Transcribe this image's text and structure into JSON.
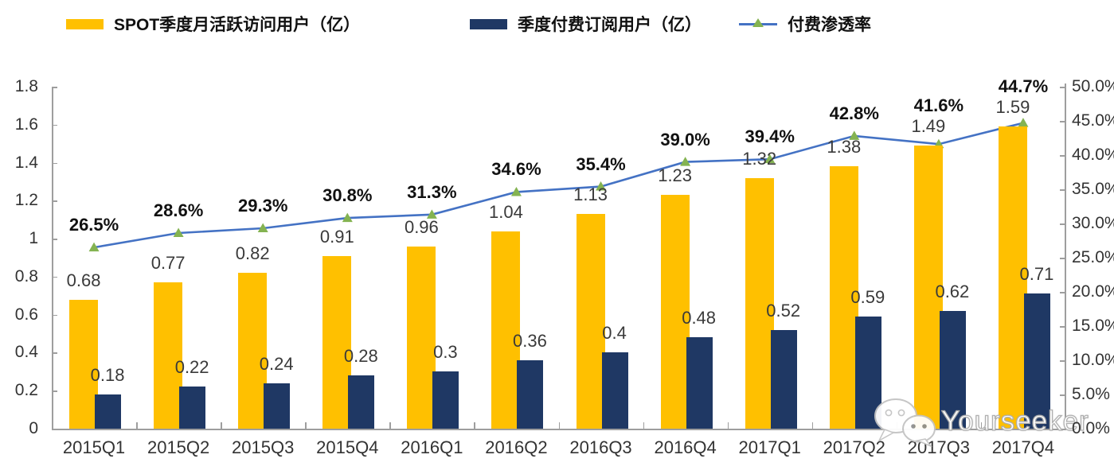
{
  "page": {
    "background": "#ffffff"
  },
  "legend": {
    "position": "top",
    "items": [
      {
        "id": "mau",
        "label": "SPOT季度月活跃访问用户（亿）",
        "swatch": "bar",
        "color": "#FFC000"
      },
      {
        "id": "subs",
        "label": "季度付费订阅用户（亿）",
        "swatch": "bar",
        "color": "#1F3864"
      },
      {
        "id": "penetration",
        "label": "付费渗透率",
        "swatch": "line",
        "color": "#4472C4",
        "marker_color": "#84B351"
      }
    ]
  },
  "chart_data": {
    "type": "combo-bar-line",
    "grid": false,
    "legend_position": "top",
    "categories": [
      "2015Q1",
      "2015Q2",
      "2015Q3",
      "2015Q4",
      "2016Q1",
      "2016Q2",
      "2016Q3",
      "2016Q4",
      "2017Q1",
      "2017Q2",
      "2017Q3",
      "2017Q4"
    ],
    "series": [
      {
        "name": "SPOT季度月活跃访问用户（亿）",
        "type": "bar",
        "yaxis": "left",
        "color": "#FFC000",
        "values": [
          0.68,
          0.77,
          0.82,
          0.91,
          0.96,
          1.04,
          1.13,
          1.23,
          1.32,
          1.38,
          1.49,
          1.59
        ],
        "data_labels": [
          "0.68",
          "0.77",
          "0.82",
          "0.91",
          "0.96",
          "1.04",
          "1.13",
          "1.23",
          "1.32",
          "1.38",
          "1.49",
          "1.59"
        ]
      },
      {
        "name": "季度付费订阅用户（亿）",
        "type": "bar",
        "yaxis": "left",
        "color": "#1F3864",
        "values": [
          0.18,
          0.22,
          0.24,
          0.28,
          0.3,
          0.36,
          0.4,
          0.48,
          0.52,
          0.59,
          0.62,
          0.71
        ],
        "data_labels": [
          "0.18",
          "0.22",
          "0.24",
          "0.28",
          "0.3",
          "0.36",
          "0.4",
          "0.48",
          "0.52",
          "0.59",
          "0.62",
          "0.71"
        ]
      },
      {
        "name": "付费渗透率",
        "type": "line",
        "yaxis": "right",
        "color": "#4472C4",
        "marker": "triangle-up",
        "marker_color": "#84B351",
        "values": [
          26.5,
          28.6,
          29.3,
          30.8,
          31.3,
          34.6,
          35.4,
          39.0,
          39.4,
          42.8,
          41.6,
          44.7
        ],
        "data_labels": [
          "26.5%",
          "28.6%",
          "29.3%",
          "30.8%",
          "31.3%",
          "34.6%",
          "35.4%",
          "39.0%",
          "39.4%",
          "42.8%",
          "41.6%",
          "44.7%"
        ]
      }
    ],
    "left_axis": {
      "min": 0,
      "max": 1.8,
      "step": 0.2,
      "tick_labels": [
        "1.8",
        "1.6",
        "1.4",
        "1.2",
        "1",
        "0.8",
        "0.6",
        "0.4",
        "0.2",
        "0"
      ]
    },
    "right_axis": {
      "min": 0,
      "max": 50,
      "step": 5,
      "tick_labels": [
        "50.0%",
        "45.0%",
        "40.0%",
        "35.0%",
        "30.0%",
        "25.0%",
        "20.0%",
        "15.0%",
        "10.0%",
        "5.0%",
        "0.0%"
      ]
    }
  },
  "watermark": {
    "text": "Yourseeker",
    "icon": "wechat-icon"
  }
}
